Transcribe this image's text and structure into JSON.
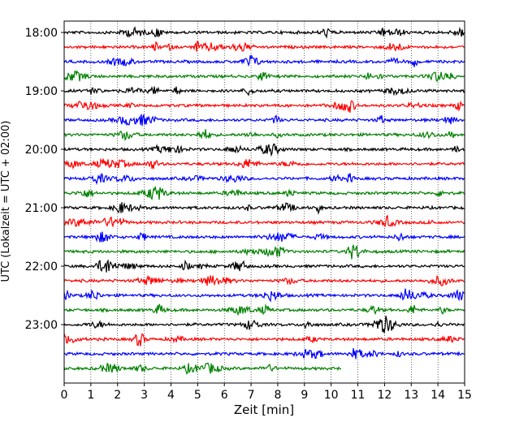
{
  "chart_data": {
    "type": "line",
    "title": "",
    "xlabel": "Zeit  [min]",
    "ylabel": "UTC (Lokalzeit = UTC + 02:00)",
    "xlim": [
      0,
      15
    ],
    "x_ticks": [
      "0",
      "1",
      "2",
      "3",
      "4",
      "5",
      "6",
      "7",
      "8",
      "9",
      "10",
      "11",
      "12",
      "13",
      "14",
      "15"
    ],
    "y_ticks": [
      "18:00",
      "19:00",
      "20:00",
      "21:00",
      "22:00",
      "23:00"
    ],
    "grid": "vertical dotted at each minute",
    "trace_interval_minutes": 15,
    "trace_colors": [
      "#000000",
      "#ff0000",
      "#0000ff",
      "#008000"
    ],
    "series": [
      {
        "start": "18:00",
        "end_min": 15
      },
      {
        "start": "18:15",
        "end_min": 15
      },
      {
        "start": "18:30",
        "end_min": 15
      },
      {
        "start": "18:45",
        "end_min": 15
      },
      {
        "start": "19:00",
        "end_min": 15
      },
      {
        "start": "19:15",
        "end_min": 15
      },
      {
        "start": "19:30",
        "end_min": 15
      },
      {
        "start": "19:45",
        "end_min": 15
      },
      {
        "start": "20:00",
        "end_min": 15
      },
      {
        "start": "20:15",
        "end_min": 15
      },
      {
        "start": "20:30",
        "end_min": 15
      },
      {
        "start": "20:45",
        "end_min": 15
      },
      {
        "start": "21:00",
        "end_min": 15
      },
      {
        "start": "21:15",
        "end_min": 15
      },
      {
        "start": "21:30",
        "end_min": 15
      },
      {
        "start": "21:45",
        "end_min": 15
      },
      {
        "start": "22:00",
        "end_min": 15
      },
      {
        "start": "22:15",
        "end_min": 15
      },
      {
        "start": "22:30",
        "end_min": 15
      },
      {
        "start": "22:45",
        "end_min": 15
      },
      {
        "start": "23:00",
        "end_min": 15
      },
      {
        "start": "23:15",
        "end_min": 15
      },
      {
        "start": "23:30",
        "end_min": 15
      },
      {
        "start": "23:45",
        "end_min": 10.4
      }
    ]
  }
}
